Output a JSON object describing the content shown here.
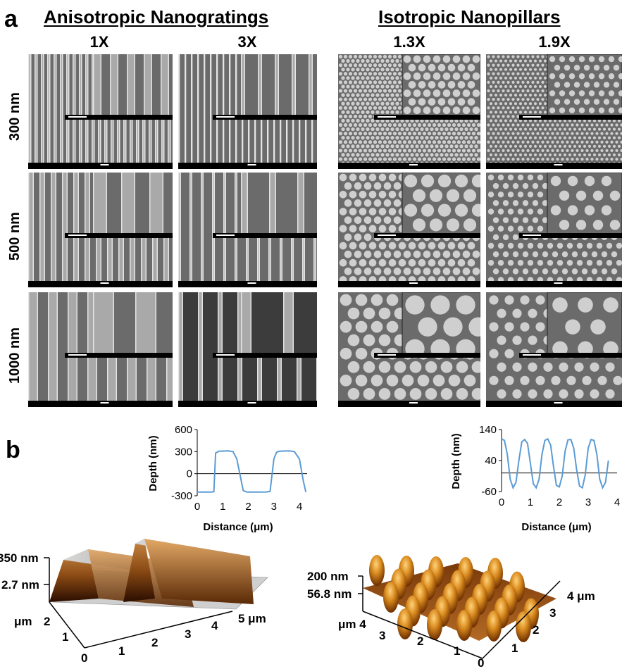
{
  "panel_a": {
    "letter": "a",
    "group_left": "Anisotropic Nanogratings",
    "group_right": "Isotropic Nanopillars",
    "columns": [
      "1X",
      "3X",
      "1.3X",
      "1.9X"
    ],
    "rows": [
      "300 nm",
      "500 nm",
      "1000 nm"
    ]
  },
  "panel_b": {
    "letter": "b",
    "afm_left": {
      "z_labels": [
        "350 nm",
        "2.7 nm"
      ],
      "axis_y_unit": "μm",
      "axis_y_ticks": [
        "2",
        "1",
        "0"
      ],
      "axis_x_ticks": [
        "1",
        "2",
        "3",
        "4"
      ],
      "axis_x_end": "5 μm"
    },
    "afm_right": {
      "z_labels": [
        "200 nm",
        "56.8 nm"
      ],
      "axis_left_unit": "μm 4",
      "axis_left_ticks": [
        "3",
        "2",
        "1",
        "0"
      ],
      "axis_right_end": "4 μm",
      "axis_right_ticks": [
        "3",
        "2",
        "1"
      ]
    }
  },
  "chart_data": [
    {
      "type": "line",
      "xlabel": "Distance (μm)",
      "ylabel": "Depth (nm)",
      "xlim": [
        0,
        4.3
      ],
      "ylim": [
        -300,
        600
      ],
      "x_ticks": [
        "0",
        "1",
        "2",
        "3",
        "4"
      ],
      "y_ticks": [
        "600",
        "300",
        "0",
        "-300"
      ],
      "color": "#5b9bd5",
      "series": [
        {
          "x": [
            0,
            0.55,
            0.65,
            0.72,
            0.85,
            1.2,
            1.4,
            1.55,
            1.8,
            1.95,
            2.3,
            2.7,
            2.85,
            3.0,
            3.1,
            3.2,
            3.6,
            3.8,
            4.0,
            4.15,
            4.25
          ],
          "y": [
            -250,
            -250,
            -245,
            280,
            305,
            310,
            300,
            200,
            -230,
            -250,
            -250,
            -248,
            -240,
            200,
            290,
            305,
            310,
            300,
            200,
            -100,
            -250
          ]
        }
      ]
    },
    {
      "type": "line",
      "xlabel": "Distance (μm)",
      "ylabel": "Depth (nm)",
      "xlim": [
        0,
        4
      ],
      "ylim": [
        -60,
        140
      ],
      "x_ticks": [
        "0",
        "1",
        "2",
        "3",
        "4"
      ],
      "y_ticks": [
        "140",
        "40",
        "-60"
      ],
      "color": "#5b9bd5",
      "series": [
        {
          "x": [
            0.0,
            0.1,
            0.2,
            0.3,
            0.4,
            0.5,
            0.6,
            0.7,
            0.8,
            0.9,
            1.0,
            1.1,
            1.2,
            1.3,
            1.4,
            1.5,
            1.6,
            1.7,
            1.8,
            1.9,
            2.0,
            2.1,
            2.2,
            2.3,
            2.4,
            2.5,
            2.6,
            2.7,
            2.8,
            2.9,
            3.0,
            3.1,
            3.2,
            3.3,
            3.4,
            3.5,
            3.6,
            3.7
          ],
          "y": [
            110,
            105,
            60,
            -20,
            -48,
            -30,
            40,
            100,
            108,
            95,
            30,
            -35,
            -48,
            -20,
            60,
            105,
            110,
            90,
            20,
            -40,
            -45,
            -10,
            70,
            107,
            108,
            80,
            10,
            -42,
            -48,
            -5,
            80,
            108,
            105,
            60,
            -20,
            -48,
            -30,
            40
          ]
        }
      ]
    }
  ]
}
